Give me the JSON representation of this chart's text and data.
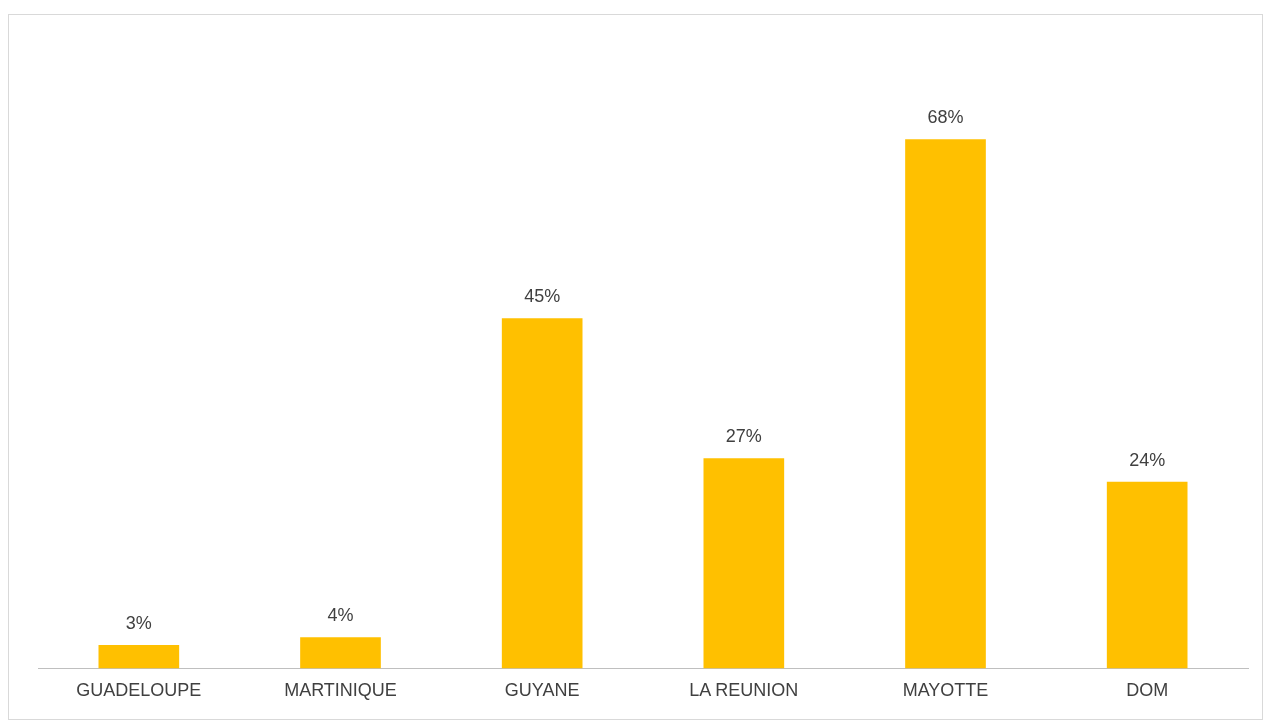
{
  "chart_data": {
    "type": "bar",
    "categories": [
      "GUADELOUPE",
      "MARTINIQUE",
      "GUYANE",
      "LA REUNION",
      "MAYOTTE",
      "DOM"
    ],
    "values": [
      3,
      4,
      45,
      27,
      68,
      24
    ],
    "value_labels": [
      "3%",
      "4%",
      "45%",
      "27%",
      "68%",
      "24%"
    ],
    "color": "#ffc000",
    "grid": false,
    "legend": false
  }
}
